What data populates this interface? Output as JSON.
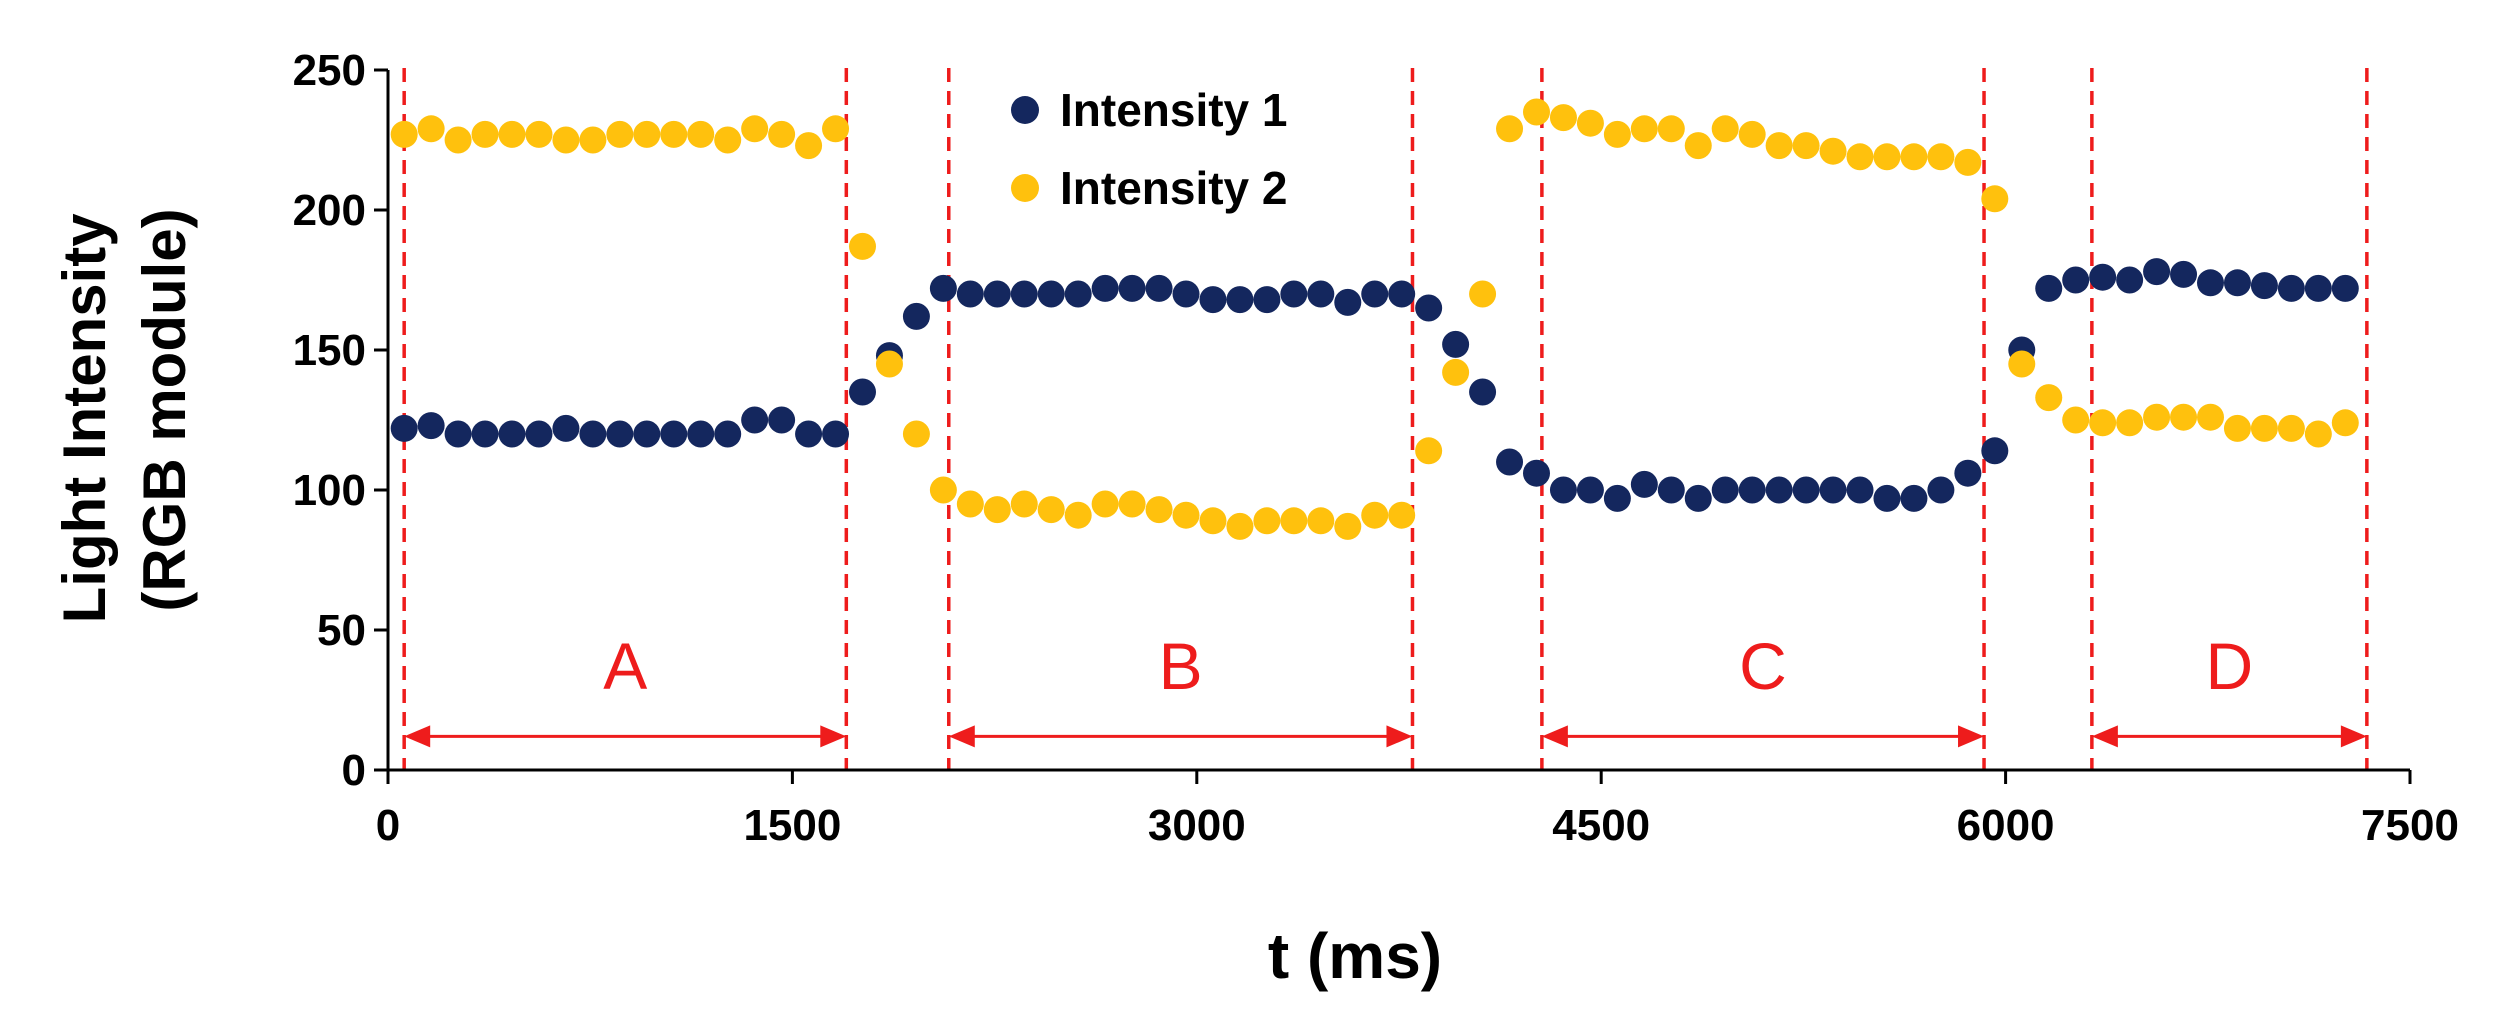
{
  "chart_data": {
    "type": "scatter",
    "title": "",
    "xlabel": "t (ms)",
    "ylabel": [
      "Light Intensity",
      "(RGB module)"
    ],
    "xlim": [
      0,
      7500
    ],
    "ylim": [
      0,
      250
    ],
    "x_ticks": [
      0,
      1500,
      3000,
      4500,
      6000,
      7500
    ],
    "y_ticks": [
      0,
      50,
      100,
      150,
      200,
      250
    ],
    "grid": false,
    "legend": {
      "position": "top-center"
    },
    "colors": {
      "series1": "#14275e",
      "series2": "#ffc10d",
      "annotation": "#ee1c1c"
    },
    "series": [
      {
        "name": "Intensity 1",
        "x": [
          60,
          160,
          260,
          360,
          460,
          560,
          660,
          760,
          860,
          960,
          1060,
          1160,
          1260,
          1360,
          1460,
          1560,
          1660,
          1760,
          1860,
          1960,
          2060,
          2160,
          2260,
          2360,
          2460,
          2560,
          2660,
          2760,
          2860,
          2960,
          3060,
          3160,
          3260,
          3360,
          3460,
          3560,
          3660,
          3760,
          3860,
          3960,
          4060,
          4160,
          4260,
          4360,
          4460,
          4560,
          4660,
          4760,
          4860,
          4960,
          5060,
          5160,
          5260,
          5360,
          5460,
          5560,
          5660,
          5760,
          5860,
          5960,
          6060,
          6160,
          6260,
          6360,
          6460,
          6560,
          6660,
          6760,
          6860,
          6960,
          7060,
          7160,
          7260
        ],
        "y": [
          122,
          123,
          120,
          120,
          120,
          120,
          122,
          120,
          120,
          120,
          120,
          120,
          120,
          125,
          125,
          120,
          120,
          135,
          148,
          162,
          172,
          170,
          170,
          170,
          170,
          170,
          172,
          172,
          172,
          170,
          168,
          168,
          168,
          170,
          170,
          167,
          170,
          170,
          165,
          152,
          135,
          110,
          106,
          100,
          100,
          97,
          102,
          100,
          97,
          100,
          100,
          100,
          100,
          100,
          100,
          97,
          97,
          100,
          106,
          114,
          150,
          172,
          175,
          176,
          175,
          178,
          177,
          174,
          174,
          173,
          172,
          172,
          172
        ]
      },
      {
        "name": "Intensity 2",
        "x": [
          60,
          160,
          260,
          360,
          460,
          560,
          660,
          760,
          860,
          960,
          1060,
          1160,
          1260,
          1360,
          1460,
          1560,
          1660,
          1760,
          1860,
          1960,
          2060,
          2160,
          2260,
          2360,
          2460,
          2560,
          2660,
          2760,
          2860,
          2960,
          3060,
          3160,
          3260,
          3360,
          3460,
          3560,
          3660,
          3760,
          3860,
          3960,
          4060,
          4160,
          4260,
          4360,
          4460,
          4560,
          4660,
          4760,
          4860,
          4960,
          5060,
          5160,
          5260,
          5360,
          5460,
          5560,
          5660,
          5760,
          5860,
          5960,
          6060,
          6160,
          6260,
          6360,
          6460,
          6560,
          6660,
          6760,
          6860,
          6960,
          7060,
          7160,
          7260
        ],
        "y": [
          227,
          229,
          225,
          227,
          227,
          227,
          225,
          225,
          227,
          227,
          227,
          227,
          225,
          229,
          227,
          223,
          229,
          187,
          145,
          120,
          100,
          95,
          93,
          95,
          93,
          91,
          95,
          95,
          93,
          91,
          89,
          87,
          89,
          89,
          89,
          87,
          91,
          91,
          114,
          142,
          170,
          229,
          235,
          233,
          231,
          227,
          229,
          229,
          223,
          229,
          227,
          223,
          223,
          221,
          219,
          219,
          219,
          219,
          217,
          204,
          145,
          133,
          125,
          124,
          124,
          126,
          126,
          126,
          122,
          122,
          122,
          120,
          124
        ]
      }
    ],
    "regions": [
      {
        "label": "A",
        "x_start": 60,
        "x_end": 1700
      },
      {
        "label": "B",
        "x_start": 2080,
        "x_end": 3800
      },
      {
        "label": "C",
        "x_start": 4280,
        "x_end": 5920
      },
      {
        "label": "D",
        "x_start": 6320,
        "x_end": 7340
      }
    ]
  }
}
